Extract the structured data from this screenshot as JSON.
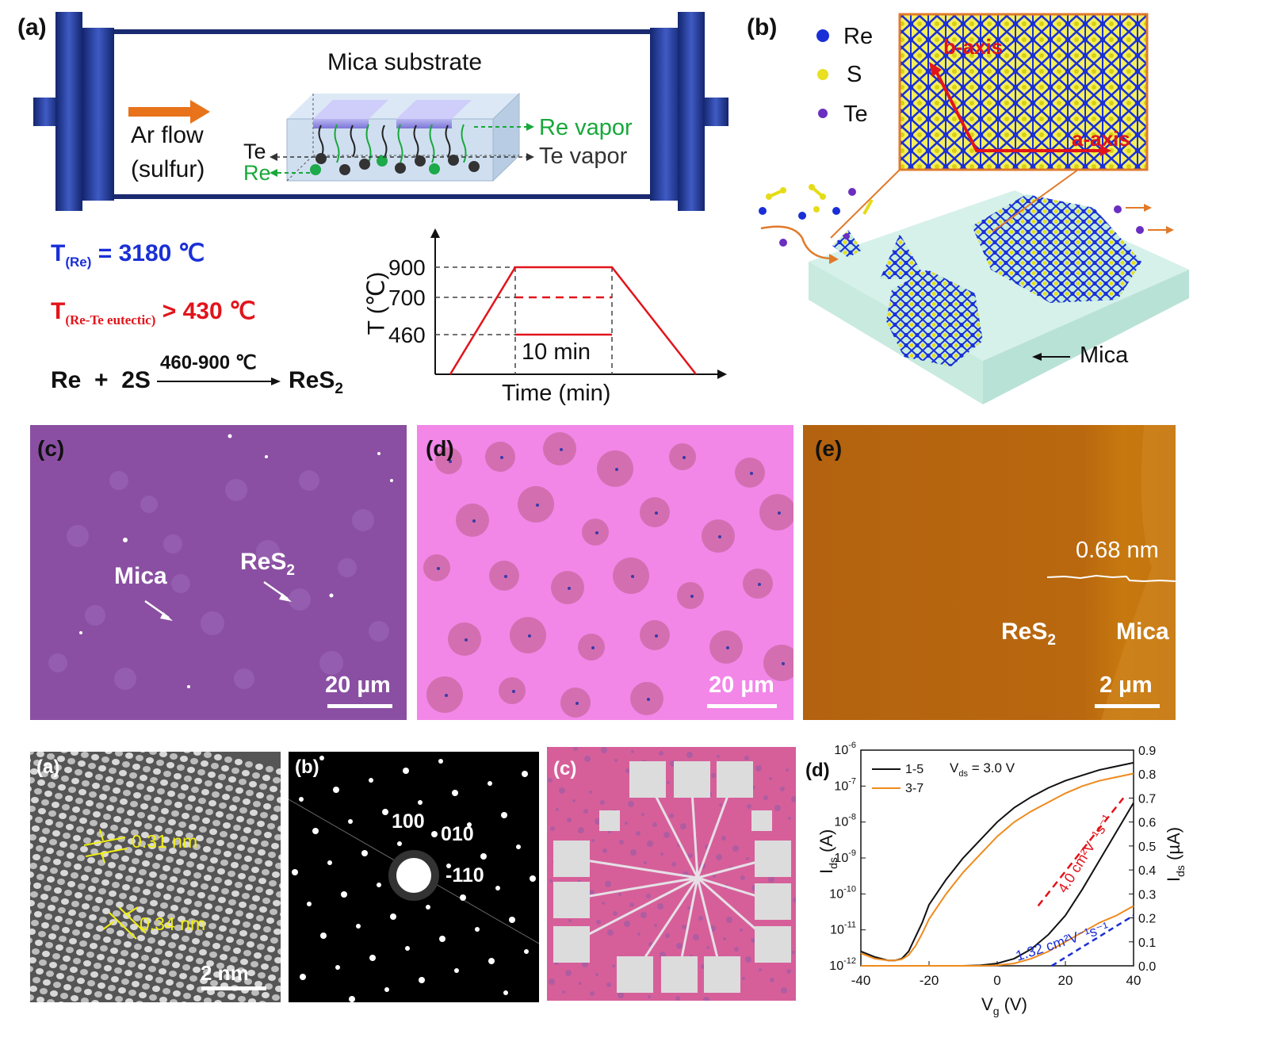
{
  "top": {
    "panel_a": {
      "label": "(a)",
      "substrate_label": "Mica substrate",
      "flow_line1": "Ar flow",
      "flow_line2": "(sulfur)",
      "te_side": "Te",
      "re_side": "Re",
      "re_vapor": "Re vapor",
      "te_vapor": "Te vapor",
      "t_re_main": "T",
      "t_re_sub": "(Re)",
      "t_re_val": "= 3180 ℃",
      "t_eut_main": "T",
      "t_eut_sub": "(Re-Te eutectic)",
      "t_eut_val": "> 430 ℃",
      "reaction_left": "Re  +  2S",
      "reaction_cond": "460-900 ℃",
      "reaction_right": "ReS",
      "reaction_sub": "2",
      "plot_ylabel": "T (℃)",
      "plot_xlabel": "Time (min)",
      "plot_ticks": [
        "900",
        "700",
        "460"
      ],
      "plot_hold": "10 min"
    },
    "panel_b": {
      "label": "(b)",
      "legend": [
        {
          "name": "Re",
          "color": "#1a2fd6"
        },
        {
          "name": "S",
          "color": "#e8e020"
        },
        {
          "name": "Te",
          "color": "#6a2fc0"
        }
      ],
      "b_axis": "b-axis",
      "a_axis": "a-axis",
      "mica": "Mica"
    },
    "panel_c": {
      "label": "(c)",
      "mica": "Mica",
      "res2": "ReS",
      "res2_sub": "2",
      "scale": "20 µm"
    },
    "panel_d": {
      "label": "(d)",
      "scale": "20 µm"
    },
    "panel_e": {
      "label": "(e)",
      "step": "0.68 nm",
      "res2": "ReS",
      "res2_sub": "2",
      "mica": "Mica",
      "scale": "2 µm"
    }
  },
  "bottom": {
    "panel_a": {
      "label": "(a)",
      "d1": "0.31 nm",
      "d2": "0.34 nm",
      "scale": "2 nm"
    },
    "panel_b": {
      "label": "(b)",
      "spots": [
        "100",
        "010",
        "-110"
      ]
    },
    "panel_c": {
      "label": "(c)"
    },
    "panel_d": {
      "label": "(d)"
    }
  },
  "chart_data": {
    "type": "line",
    "xlabel": "V",
    "xlabel_sub": "g",
    "xlabel_unit": " (V)",
    "ylabel_left": "I",
    "ylabel_left_sub": "ds",
    "ylabel_left_unit": " (A)",
    "ylabel_right": "I",
    "ylabel_right_sub": "ds",
    "ylabel_right_unit": " (µA)",
    "xlim": [
      -40,
      40
    ],
    "x_ticks": [
      "-40",
      "-20",
      "0",
      "20",
      "40"
    ],
    "ylim_left_log": [
      -12,
      -6
    ],
    "ylim_right": [
      0.0,
      0.9
    ],
    "y_right_ticks": [
      "0.0",
      "0.1",
      "0.2",
      "0.3",
      "0.4",
      "0.5",
      "0.6",
      "0.7",
      "0.8",
      "0.9"
    ],
    "annotation_vds": "V",
    "annotation_vds_sub": "ds",
    "annotation_vds_val": " = 3.0 V",
    "mobility_high": "4.0 cm²V⁻¹s⁻¹",
    "mobility_low": "1.32 cm²V⁻¹s⁻¹",
    "legend_location": "top-left",
    "series": [
      {
        "name": "1-5",
        "color": "#111111",
        "scale": "log",
        "x": [
          -40,
          -36,
          -32,
          -30,
          -28,
          -26,
          -24,
          -22,
          -20,
          -15,
          -10,
          -5,
          0,
          5,
          10,
          15,
          20,
          25,
          30,
          35,
          40
        ],
        "y": [
          -11.6,
          -11.75,
          -11.85,
          -11.85,
          -11.8,
          -11.6,
          -11.2,
          -10.8,
          -10.3,
          -9.6,
          -9.0,
          -8.5,
          -8.0,
          -7.6,
          -7.3,
          -7.05,
          -6.85,
          -6.7,
          -6.55,
          -6.45,
          -6.35
        ]
      },
      {
        "name": "3-7",
        "color": "#ef8a1d",
        "scale": "log",
        "x": [
          -40,
          -36,
          -32,
          -30,
          -28,
          -26,
          -24,
          -22,
          -20,
          -15,
          -10,
          -5,
          0,
          5,
          10,
          15,
          20,
          25,
          30,
          35,
          40
        ],
        "y": [
          -11.65,
          -11.8,
          -11.85,
          -11.85,
          -11.82,
          -11.7,
          -11.45,
          -11.1,
          -10.7,
          -10.0,
          -9.4,
          -8.9,
          -8.4,
          -8.0,
          -7.7,
          -7.45,
          -7.2,
          -7.0,
          -6.85,
          -6.75,
          -6.65
        ]
      },
      {
        "name": "1-5 linear",
        "color": "#111111",
        "scale": "linear",
        "x": [
          -40,
          -20,
          -10,
          -5,
          0,
          5,
          10,
          15,
          20,
          25,
          30,
          35,
          40
        ],
        "y": [
          0.0,
          0.0,
          0.0,
          0.002,
          0.01,
          0.03,
          0.07,
          0.13,
          0.21,
          0.32,
          0.44,
          0.56,
          0.68
        ]
      },
      {
        "name": "3-7 linear",
        "color": "#ef8a1d",
        "scale": "linear",
        "x": [
          -40,
          -20,
          -10,
          -5,
          0,
          5,
          10,
          15,
          20,
          25,
          30,
          35,
          40
        ],
        "y": [
          0.0,
          0.0,
          0.0,
          0.0,
          0.002,
          0.01,
          0.03,
          0.06,
          0.1,
          0.14,
          0.18,
          0.21,
          0.25
        ]
      }
    ]
  }
}
